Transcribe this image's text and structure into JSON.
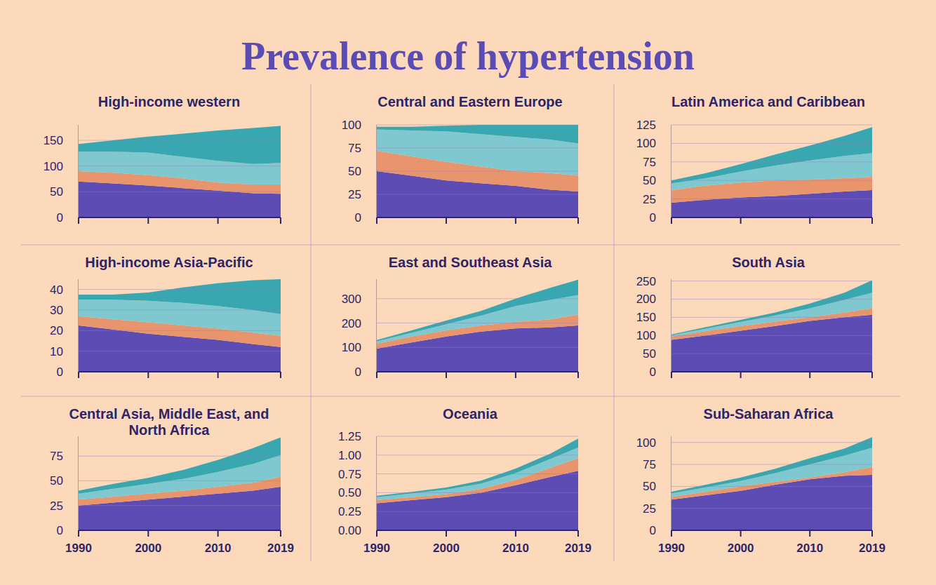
{
  "title": "Prevalence of hypertension",
  "chart_data": [
    {
      "type": "area",
      "title": "High-income western",
      "stacked": true,
      "grid": true,
      "tick_labels": "y",
      "x": [
        1990,
        1995,
        2000,
        2005,
        2010,
        2015,
        2019
      ],
      "xlim": [
        1990,
        2019
      ],
      "xticks": [
        1990,
        2000,
        2010,
        2019
      ],
      "ylim": [
        0,
        180
      ],
      "yticks": [
        0,
        50,
        100,
        150
      ],
      "series": [
        {
          "color": "#5d4cb4",
          "values": [
            70,
            66,
            62,
            57,
            52,
            47,
            46
          ]
        },
        {
          "color": "#e8956e",
          "values": [
            20,
            21,
            20,
            19,
            16,
            17,
            18
          ]
        },
        {
          "color": "#80c8cf",
          "values": [
            38,
            41,
            44,
            42,
            42,
            40,
            42
          ]
        },
        {
          "color": "#38a7b0",
          "values": [
            15,
            22,
            31,
            45,
            59,
            70,
            72
          ]
        }
      ]
    },
    {
      "type": "area",
      "title": "Central and Eastern Europe",
      "stacked": true,
      "grid": true,
      "tick_labels": "y",
      "x": [
        1990,
        1995,
        2000,
        2005,
        2010,
        2015,
        2019
      ],
      "xlim": [
        1990,
        2019
      ],
      "xticks": [
        1990,
        2000,
        2010,
        2019
      ],
      "ylim": [
        0,
        100
      ],
      "yticks": [
        0,
        25,
        50,
        75,
        100
      ],
      "series": [
        {
          "color": "#5d4cb4",
          "values": [
            50,
            45,
            40,
            37,
            34,
            30,
            28
          ]
        },
        {
          "color": "#e8956e",
          "values": [
            22,
            21,
            20,
            18,
            16,
            18,
            17
          ]
        },
        {
          "color": "#80c8cf",
          "values": [
            23,
            28,
            33,
            35,
            37,
            36,
            35
          ]
        },
        {
          "color": "#38a7b0",
          "values": [
            3,
            4,
            6,
            10,
            13,
            16,
            20
          ]
        }
      ]
    },
    {
      "type": "area",
      "title": "Latin America and Caribbean",
      "stacked": true,
      "grid": true,
      "tick_labels": "y",
      "x": [
        1990,
        1995,
        2000,
        2005,
        2010,
        2015,
        2019
      ],
      "xlim": [
        1990,
        2019
      ],
      "xticks": [
        1990,
        2000,
        2010,
        2019
      ],
      "ylim": [
        0,
        125
      ],
      "yticks": [
        0,
        25,
        50,
        75,
        100,
        125
      ],
      "series": [
        {
          "color": "#5d4cb4",
          "values": [
            20,
            24,
            27,
            29,
            32,
            35,
            37
          ]
        },
        {
          "color": "#e8956e",
          "values": [
            17,
            19,
            20,
            21,
            19,
            18,
            18
          ]
        },
        {
          "color": "#80c8cf",
          "values": [
            9,
            10,
            15,
            20,
            26,
            30,
            32
          ]
        },
        {
          "color": "#38a7b0",
          "values": [
            4,
            7,
            10,
            15,
            20,
            27,
            35
          ]
        }
      ]
    },
    {
      "type": "area",
      "title": "High-income Asia-Pacific",
      "stacked": true,
      "grid": true,
      "tick_labels": "y",
      "x": [
        1990,
        1995,
        2000,
        2005,
        2010,
        2015,
        2019
      ],
      "xlim": [
        1990,
        2019
      ],
      "xticks": [
        1990,
        2000,
        2010,
        2019
      ],
      "ylim": [
        0,
        45
      ],
      "yticks": [
        0,
        10,
        20,
        30,
        40
      ],
      "series": [
        {
          "color": "#5d4cb4",
          "values": [
            22.5,
            20.5,
            18.5,
            17,
            15.5,
            13.5,
            12
          ]
        },
        {
          "color": "#e8956e",
          "values": [
            4.5,
            5,
            5.5,
            5.5,
            5.5,
            5.5,
            5.5
          ]
        },
        {
          "color": "#80c8cf",
          "values": [
            8,
            9.5,
            10.5,
            11,
            11,
            11,
            10.5
          ]
        },
        {
          "color": "#38a7b0",
          "values": [
            2.5,
            2.5,
            4,
            7.5,
            11,
            14.5,
            17
          ]
        }
      ]
    },
    {
      "type": "area",
      "title": "East and Southeast Asia",
      "stacked": true,
      "grid": true,
      "tick_labels": "y",
      "x": [
        1990,
        1995,
        2000,
        2005,
        2010,
        2015,
        2019
      ],
      "xlim": [
        1990,
        2019
      ],
      "xticks": [
        1990,
        2000,
        2010,
        2019
      ],
      "ylim": [
        0,
        380
      ],
      "yticks": [
        0,
        100,
        200,
        300
      ],
      "series": [
        {
          "color": "#5d4cb4",
          "values": [
            95,
            120,
            145,
            165,
            178,
            182,
            190
          ]
        },
        {
          "color": "#e8956e",
          "values": [
            20,
            25,
            25,
            25,
            27,
            33,
            45
          ]
        },
        {
          "color": "#80c8cf",
          "values": [
            10,
            15,
            25,
            40,
            65,
            80,
            80
          ]
        },
        {
          "color": "#38a7b0",
          "values": [
            5,
            10,
            15,
            20,
            30,
            50,
            63
          ]
        }
      ]
    },
    {
      "type": "area",
      "title": "South Asia",
      "stacked": true,
      "grid": true,
      "tick_labels": "y",
      "x": [
        1990,
        1995,
        2000,
        2005,
        2010,
        2015,
        2019
      ],
      "xlim": [
        1990,
        2019
      ],
      "xticks": [
        1990,
        2000,
        2010,
        2019
      ],
      "ylim": [
        0,
        255
      ],
      "yticks": [
        0,
        50,
        100,
        150,
        200,
        250
      ],
      "series": [
        {
          "color": "#5d4cb4",
          "values": [
            88,
            100,
            113,
            126,
            140,
            150,
            157
          ]
        },
        {
          "color": "#e8956e",
          "values": [
            9,
            12,
            13,
            12,
            10,
            13,
            18
          ]
        },
        {
          "color": "#80c8cf",
          "values": [
            4,
            7,
            11,
            17,
            25,
            35,
            43
          ]
        },
        {
          "color": "#38a7b0",
          "values": [
            2,
            4,
            6,
            8,
            13,
            20,
            34
          ]
        }
      ]
    },
    {
      "type": "area",
      "title": "Central Asia, Middle East, and North Africa",
      "stacked": true,
      "grid": true,
      "x": [
        1990,
        1995,
        2000,
        2005,
        2010,
        2015,
        2019
      ],
      "xlim": [
        1990,
        2019
      ],
      "xticks": [
        1990,
        2000,
        2010,
        2019
      ],
      "ylim": [
        0,
        95
      ],
      "yticks": [
        0,
        25,
        50,
        75
      ],
      "series": [
        {
          "color": "#5d4cb4",
          "values": [
            25,
            28,
            31,
            34,
            37,
            40,
            44
          ]
        },
        {
          "color": "#e8956e",
          "values": [
            6,
            6,
            6,
            6,
            7,
            8,
            10
          ]
        },
        {
          "color": "#80c8cf",
          "values": [
            6,
            8,
            10,
            12,
            15,
            19,
            22
          ]
        },
        {
          "color": "#38a7b0",
          "values": [
            3,
            5,
            6,
            9,
            12,
            16,
            18
          ]
        }
      ]
    },
    {
      "type": "area",
      "title": "Oceania",
      "stacked": true,
      "grid": true,
      "x": [
        1990,
        1995,
        2000,
        2005,
        2010,
        2015,
        2019
      ],
      "xlim": [
        1990,
        2019
      ],
      "xticks": [
        1990,
        2000,
        2010,
        2019
      ],
      "ylim": [
        0,
        1.25
      ],
      "yticks": [
        {
          "value": 0,
          "label": "0.00"
        },
        0.25,
        {
          "value": 0.5,
          "label": "0.50"
        },
        0.75,
        {
          "value": 1,
          "label": "1.00"
        },
        1.25
      ],
      "series": [
        {
          "color": "#5d4cb4",
          "values": [
            0.36,
            0.4,
            0.44,
            0.5,
            0.6,
            0.71,
            0.79
          ]
        },
        {
          "color": "#e8956e",
          "values": [
            0.04,
            0.04,
            0.04,
            0.05,
            0.07,
            0.12,
            0.17
          ]
        },
        {
          "color": "#80c8cf",
          "values": [
            0.04,
            0.05,
            0.06,
            0.07,
            0.09,
            0.12,
            0.14
          ]
        },
        {
          "color": "#38a7b0",
          "values": [
            0.02,
            0.02,
            0.03,
            0.04,
            0.06,
            0.07,
            0.12
          ]
        }
      ]
    },
    {
      "type": "area",
      "title": "Sub-Saharan Africa",
      "stacked": true,
      "grid": true,
      "x": [
        1990,
        1995,
        2000,
        2005,
        2010,
        2015,
        2019
      ],
      "xlim": [
        1990,
        2019
      ],
      "xticks": [
        1990,
        2000,
        2010,
        2019
      ],
      "ylim": [
        0,
        107
      ],
      "yticks": [
        0,
        25,
        50,
        75,
        100
      ],
      "series": [
        {
          "color": "#5d4cb4",
          "values": [
            35,
            40,
            45,
            52,
            58,
            62,
            63
          ]
        },
        {
          "color": "#e8956e",
          "values": [
            3,
            4,
            5,
            3,
            2,
            4,
            9
          ]
        },
        {
          "color": "#80c8cf",
          "values": [
            4,
            5,
            6,
            10,
            15,
            19,
            22
          ]
        },
        {
          "color": "#38a7b0",
          "values": [
            2,
            3,
            4,
            5,
            7,
            8,
            12
          ]
        }
      ]
    }
  ]
}
